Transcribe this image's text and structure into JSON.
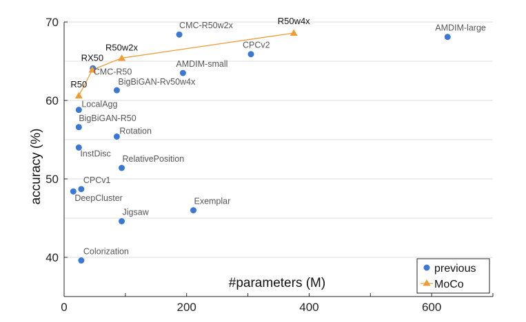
{
  "chart_data": {
    "type": "scatter",
    "xlabel": "#parameters (M)",
    "ylabel": "accuracy (%)",
    "xlim": [
      0,
      700
    ],
    "ylim": [
      35,
      70
    ],
    "x_ticks": [
      0,
      200,
      400,
      600
    ],
    "y_ticks": [
      40,
      50,
      60,
      70
    ],
    "grid": true,
    "legend_position": "bottom-right",
    "colors": {
      "previous": "#3a78d4",
      "moco": "#ee9c38",
      "grid": "#dcdcdc"
    },
    "series": [
      {
        "name": "previous",
        "marker": "circle",
        "points": [
          {
            "label": "CMC-R50w2x",
            "x": 188,
            "y": 68.4
          },
          {
            "label": "AMDIM-large",
            "x": 626,
            "y": 68.1
          },
          {
            "label": "CPCv2",
            "x": 305,
            "y": 65.9
          },
          {
            "label": "CMC-R50",
            "x": 47,
            "y": 64.1
          },
          {
            "label": "AMDIM-small",
            "x": 194,
            "y": 63.5
          },
          {
            "label": "BigBiGAN-Rv50w4x",
            "x": 86,
            "y": 61.3
          },
          {
            "label": "LocalAgg",
            "x": 24,
            "y": 58.8
          },
          {
            "label": "BigBiGAN-R50",
            "x": 24,
            "y": 56.6
          },
          {
            "label": "Rotation",
            "x": 86,
            "y": 55.4
          },
          {
            "label": "InstDisc",
            "x": 24,
            "y": 54.0
          },
          {
            "label": "RelativePosition",
            "x": 94,
            "y": 51.4
          },
          {
            "label": "CPCv1",
            "x": 28,
            "y": 48.7
          },
          {
            "label": "DeepCluster",
            "x": 15,
            "y": 48.4
          },
          {
            "label": "Exemplar",
            "x": 211,
            "y": 46.0
          },
          {
            "label": "Jigsaw",
            "x": 94,
            "y": 44.6
          },
          {
            "label": "Colorization",
            "x": 28,
            "y": 39.6
          }
        ]
      },
      {
        "name": "MoCo",
        "marker": "triangle",
        "line": true,
        "points": [
          {
            "label": "R50",
            "x": 24,
            "y": 60.6
          },
          {
            "label": "RX50",
            "x": 46,
            "y": 63.9
          },
          {
            "label": "R50w2x",
            "x": 94,
            "y": 65.4
          },
          {
            "label": "R50w4x",
            "x": 375,
            "y": 68.6
          }
        ]
      }
    ],
    "legend": [
      "previous",
      "MoCo"
    ]
  }
}
